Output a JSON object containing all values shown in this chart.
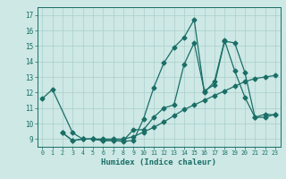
{
  "xlabel": "Humidex (Indice chaleur)",
  "bg_color": "#cde8e5",
  "grid_color": "#aacfcc",
  "line_color": "#1a6e66",
  "xlim": [
    -0.5,
    23.5
  ],
  "ylim": [
    8.5,
    17.5
  ],
  "xticks": [
    0,
    1,
    2,
    3,
    4,
    5,
    6,
    7,
    8,
    9,
    10,
    11,
    12,
    13,
    14,
    15,
    16,
    17,
    18,
    19,
    20,
    21,
    22,
    23
  ],
  "yticks": [
    9,
    10,
    11,
    12,
    13,
    14,
    15,
    16,
    17
  ],
  "series1_x": [
    0,
    1,
    3,
    4,
    5,
    6,
    7,
    8,
    9,
    10,
    11,
    12,
    13,
    14,
    15,
    16,
    17,
    18,
    19,
    20,
    21,
    22,
    23
  ],
  "series1_y": [
    11.6,
    12.2,
    9.4,
    9.0,
    9.0,
    8.9,
    8.9,
    8.85,
    8.9,
    10.3,
    12.3,
    13.9,
    14.9,
    15.55,
    16.7,
    12.0,
    12.7,
    15.35,
    13.4,
    11.7,
    10.4,
    10.6,
    10.55
  ],
  "series2_x": [
    2,
    3,
    4,
    5,
    6,
    7,
    8,
    9,
    10,
    11,
    12,
    13,
    14,
    15,
    16,
    17,
    18,
    19,
    20,
    21,
    22,
    23
  ],
  "series2_y": [
    9.4,
    8.9,
    9.0,
    9.0,
    8.9,
    8.9,
    8.9,
    9.6,
    9.6,
    10.4,
    11.0,
    11.2,
    13.8,
    15.2,
    12.1,
    12.5,
    15.3,
    15.2,
    13.3,
    10.4,
    10.4,
    10.6
  ],
  "series3_x": [
    2,
    3,
    4,
    5,
    6,
    7,
    8,
    9,
    10,
    11,
    12,
    13,
    14,
    15,
    16,
    17,
    18,
    19,
    20,
    21,
    22,
    23
  ],
  "series3_y": [
    9.4,
    8.9,
    9.0,
    9.0,
    9.0,
    9.0,
    9.0,
    9.15,
    9.45,
    9.75,
    10.1,
    10.5,
    10.9,
    11.2,
    11.5,
    11.8,
    12.1,
    12.4,
    12.7,
    12.9,
    13.0,
    13.1
  ]
}
